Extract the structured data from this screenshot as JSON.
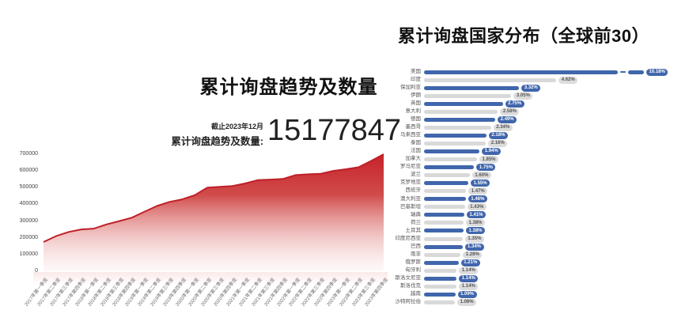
{
  "left_chart": {
    "title": "累计询盘趋势及数量",
    "asof_label": "截止2023年12月",
    "total_label": "累计询盘趋势及数量:",
    "total_value": "15177847",
    "accent_color": "#c5222a"
  },
  "right_chart": {
    "title": "累计询盘国家分布（全球前30）",
    "blue_color": "#4066ac",
    "gray_color": "#d9d9d9"
  },
  "chart_data": [
    {
      "type": "area",
      "title": "累计询盘趋势及数量",
      "x": [
        "2017年第一季度",
        "2017年第二季度",
        "2017年第三季度",
        "2017年第四季度",
        "2018年第一季度",
        "2018年第二季度",
        "2018年第三季度",
        "2018年第四季度",
        "2019年第一季度",
        "2019年第二季度",
        "2019年第三季度",
        "2019年第四季度",
        "2020年第一季度",
        "2020年第二季度",
        "2020年第三季度",
        "2020年第四季度",
        "2021年第一季度",
        "2021年第二季度",
        "2021年第三季度",
        "2021年第四季度",
        "2022年第一季度",
        "2022年第二季度",
        "2022年第三季度",
        "2022年第四季度",
        "2023年第一季度",
        "2023年第二季度",
        "2023年第三季度",
        "2023年第四季度"
      ],
      "values": [
        175000,
        210000,
        235000,
        250000,
        255000,
        280000,
        300000,
        320000,
        355000,
        390000,
        415000,
        430000,
        455000,
        500000,
        505000,
        510000,
        525000,
        545000,
        548000,
        552000,
        575000,
        580000,
        583000,
        600000,
        610000,
        622000,
        660000,
        700000
      ],
      "ylim": [
        0,
        700000
      ],
      "yticks": [
        0,
        100000,
        200000,
        300000,
        400000,
        500000,
        600000,
        700000
      ],
      "grid": false,
      "line_color": "#bf1f27",
      "fill_top_color": "#c5222a",
      "fill_bottom_color": "#ffffff"
    },
    {
      "type": "bar",
      "orientation": "horizontal",
      "title": "累计询盘国家分布（全球前30）",
      "unit": "%",
      "legend_position": "none",
      "note": "first bar (美国) drawn with axis break",
      "categories": [
        "美国",
        "印度",
        "保加利亚",
        "伊朗",
        "英国",
        "意大利",
        "德国",
        "墨西哥",
        "马来西亚",
        "泰国",
        "法国",
        "加拿大",
        "罗马尼亚",
        "波兰",
        "克罗地亚",
        "西班牙",
        "澳大利亚",
        "巴基斯坦",
        "瑞典",
        "荷兰",
        "土耳其",
        "印度尼西亚",
        "巴西",
        "南非",
        "俄罗斯",
        "匈牙利",
        "斯洛文尼亚",
        "斯洛伐克",
        "越南",
        "沙特阿拉伯"
      ],
      "values": [
        10.18,
        4.62,
        3.32,
        3.05,
        2.75,
        2.58,
        2.49,
        2.34,
        2.18,
        2.16,
        1.94,
        1.85,
        1.75,
        1.6,
        1.55,
        1.47,
        1.46,
        1.43,
        1.41,
        1.38,
        1.38,
        1.35,
        1.34,
        1.28,
        1.21,
        1.14,
        1.14,
        1.14,
        1.09,
        1.08
      ],
      "labels": [
        "10.18%",
        "4.62%",
        "3.32%",
        "3.05%",
        "2.75%",
        "2.58%",
        "2.49%",
        "2.34%",
        "2.18%",
        "2.16%",
        "1.94%",
        "1.85%",
        "1.75%",
        "1.60%",
        "1.55%",
        "1.47%",
        "1.46%",
        "1.43%",
        "1.41%",
        "1.38%",
        "1.38%",
        "1.35%",
        "1.34%",
        "1.28%",
        "1.21%",
        "1.14%",
        "1.14%",
        "1.14%",
        "1.09%",
        "1.08%"
      ],
      "bar_color_odd_rows": "#4066ac",
      "bar_color_even_rows": "#d9d9d9"
    }
  ]
}
